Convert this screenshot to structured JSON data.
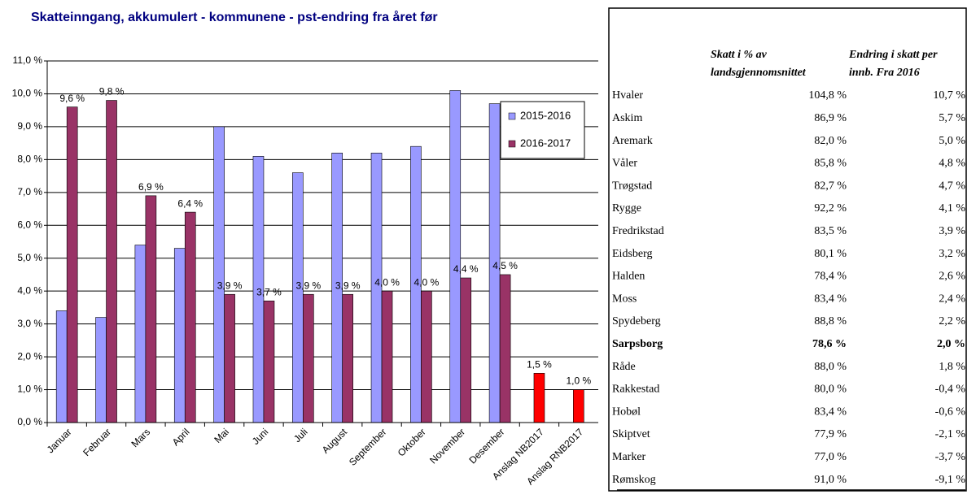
{
  "chart_data": {
    "type": "bar",
    "title": "Skatteinngang, akkumulert - kommunene - pst-endring fra året før",
    "categories": [
      "Januar",
      "Februar",
      "Mars",
      "April",
      "Mai",
      "Juni",
      "Juli",
      "August",
      "September",
      "Oktober",
      "November",
      "Desember",
      "Anslag NB2017",
      "Anslag RNB2017"
    ],
    "series": [
      {
        "name": "2015-2016",
        "color": "#9999ff",
        "values": [
          3.4,
          3.2,
          5.4,
          5.3,
          9.0,
          8.1,
          7.6,
          8.2,
          8.2,
          8.4,
          10.1,
          9.7,
          null,
          null
        ]
      },
      {
        "name": "2016-2017",
        "color": "#993366",
        "colors": [
          "#993366",
          "#993366",
          "#993366",
          "#993366",
          "#993366",
          "#993366",
          "#993366",
          "#993366",
          "#993366",
          "#993366",
          "#993366",
          "#993366",
          "#ff0000",
          "#ff0000"
        ],
        "values": [
          9.6,
          9.8,
          6.9,
          6.4,
          3.9,
          3.7,
          3.9,
          3.9,
          4.0,
          4.0,
          4.4,
          4.5,
          1.5,
          1.0
        ],
        "value_labels": [
          "9,6 %",
          "9,8 %",
          "6,9 %",
          "6,4 %",
          "3,9 %",
          "3,7 %",
          "3,9 %",
          "3,9 %",
          "4,0 %",
          "4,0 %",
          "4,4 %",
          "4,5 %",
          "1,5 %",
          "1,0 %"
        ]
      }
    ],
    "ylim": [
      0,
      11
    ],
    "yticks": [
      {
        "value": 0,
        "label": "0,0 %"
      },
      {
        "value": 1,
        "label": "1,0 %"
      },
      {
        "value": 2,
        "label": "2,0 %"
      },
      {
        "value": 3,
        "label": "3,0 %"
      },
      {
        "value": 4,
        "label": "4,0 %"
      },
      {
        "value": 5,
        "label": "5,0 %"
      },
      {
        "value": 6,
        "label": "6,0 %"
      },
      {
        "value": 7,
        "label": "7,0 %"
      },
      {
        "value": 8,
        "label": "8,0 %"
      },
      {
        "value": 9,
        "label": "9,0 %"
      },
      {
        "value": 10,
        "label": "10,0 %"
      },
      {
        "value": 11,
        "label": "11,0 %"
      }
    ],
    "grid": true,
    "legend": "upper right"
  },
  "table": {
    "columns": [
      "Skatt i % av landsgjennomsnittet",
      "Endring i skatt per innb. Fra 2016"
    ],
    "highlight_row": 11,
    "rows": [
      [
        "Hvaler",
        "104,8 %",
        "10,7 %"
      ],
      [
        "Askim",
        "86,9 %",
        "5,7 %"
      ],
      [
        "Aremark",
        "82,0 %",
        "5,0 %"
      ],
      [
        "Våler",
        "85,8 %",
        "4,8 %"
      ],
      [
        "Trøgstad",
        "82,7 %",
        "4,7 %"
      ],
      [
        "Rygge",
        "92,2 %",
        "4,1 %"
      ],
      [
        "Fredrikstad",
        "83,5 %",
        "3,9 %"
      ],
      [
        "Eidsberg",
        "80,1 %",
        "3,2 %"
      ],
      [
        "Halden",
        "78,4 %",
        "2,6 %"
      ],
      [
        "Moss",
        "83,4 %",
        "2,4 %"
      ],
      [
        "Spydeberg",
        "88,8 %",
        "2,2 %"
      ],
      [
        "Sarpsborg",
        "78,6 %",
        "2,0 %"
      ],
      [
        "Råde",
        "88,0 %",
        "1,8 %"
      ],
      [
        "Rakkestad",
        "80,0 %",
        "-0,4 %"
      ],
      [
        "Hobøl",
        "83,4 %",
        "-0,6 %"
      ],
      [
        "Skiptvet",
        "77,9 %",
        "-2,1 %"
      ],
      [
        "Marker",
        "77,0 %",
        "-3,7 %"
      ],
      [
        "Rømskog",
        "91,0 %",
        "-9,1 %"
      ]
    ]
  }
}
